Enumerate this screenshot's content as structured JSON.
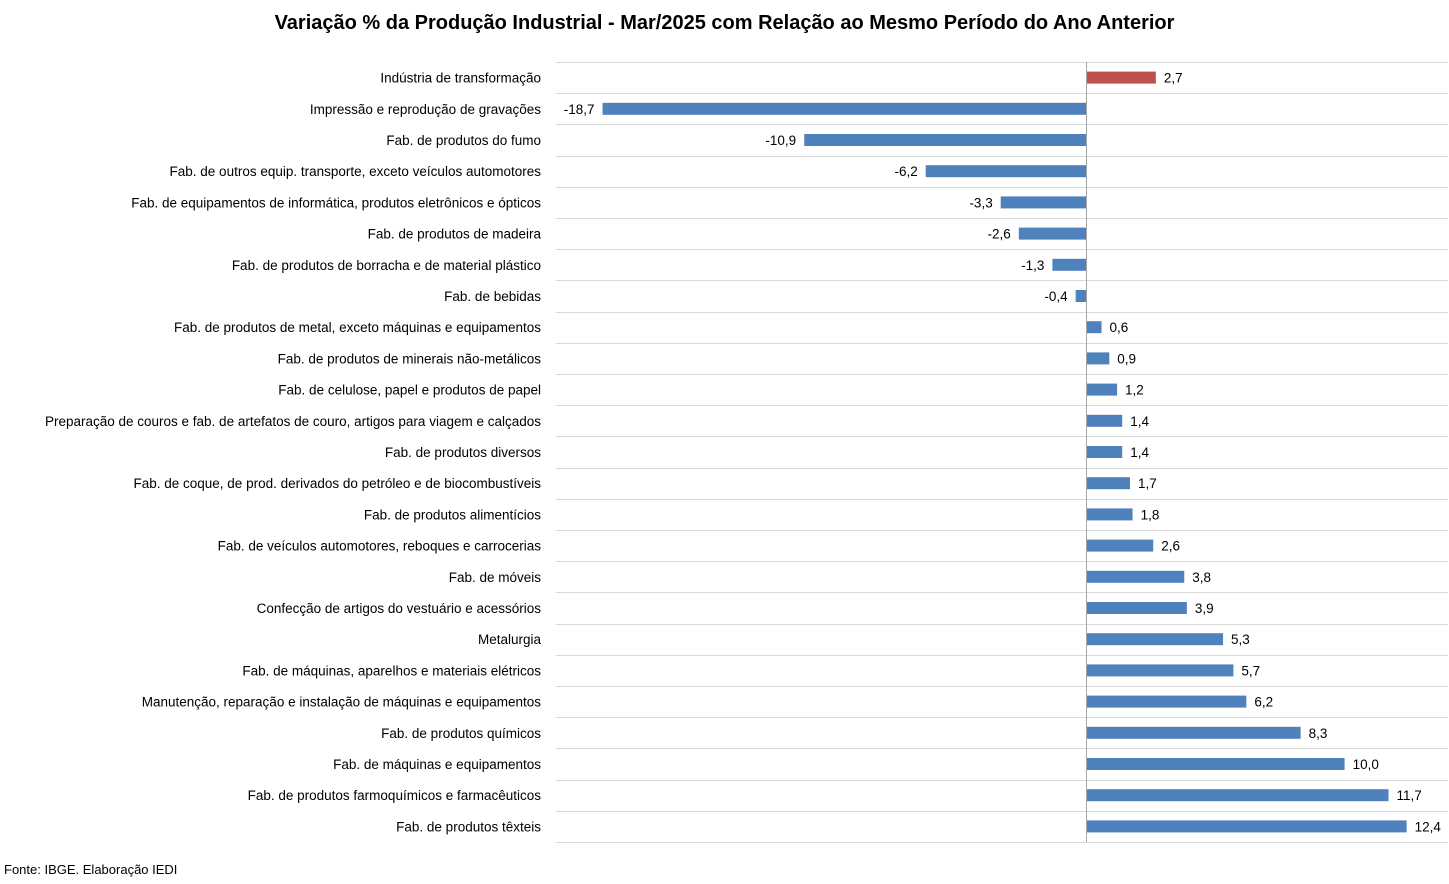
{
  "chart_data": {
    "type": "bar",
    "orientation": "horizontal",
    "title": "Variação % da Produção Industrial - Mar/2025 com Relação ao Mesmo Período do Ano Anterior",
    "source": "Fonte: IBGE. Elaboração IEDI",
    "categories": [
      "Indústria de transformação",
      "Impressão e reprodução de gravações",
      "Fab. de produtos do fumo",
      "Fab. de outros equip. transporte, exceto veículos automotores",
      "Fab. de equipamentos de informática, produtos eletrônicos e ópticos",
      "Fab. de produtos de madeira",
      "Fab. de produtos de borracha e de material plástico",
      "Fab. de bebidas",
      "Fab. de produtos de metal, exceto máquinas e equipamentos",
      "Fab. de produtos de minerais não-metálicos",
      "Fab. de celulose, papel e produtos de papel",
      "Preparação de couros e fab. de artefatos de couro, artigos para viagem e calçados",
      "Fab. de produtos diversos",
      "Fab. de coque, de prod. derivados do petróleo e de biocombustíveis",
      "Fab. de produtos alimentícios",
      "Fab. de veículos automotores, reboques e carrocerias",
      "Fab. de móveis",
      "Confecção de artigos do vestuário e acessórios",
      "Metalurgia",
      "Fab. de máquinas, aparelhos e materiais elétricos",
      "Manutenção, reparação e instalação de máquinas e equipamentos",
      "Fab. de produtos químicos",
      "Fab. de máquinas e equipamentos",
      "Fab. de produtos farmoquímicos e farmacêuticos",
      "Fab. de produtos têxteis"
    ],
    "values": [
      2.7,
      -18.7,
      -10.9,
      -6.2,
      -3.3,
      -2.6,
      -1.3,
      -0.4,
      0.6,
      0.9,
      1.2,
      1.4,
      1.4,
      1.7,
      1.8,
      2.6,
      3.8,
      3.9,
      5.3,
      5.7,
      6.2,
      8.3,
      10.0,
      11.7,
      12.4
    ],
    "value_labels": [
      "2,7",
      "-18,7",
      "-10,9",
      "-6,2",
      "-3,3",
      "-2,6",
      "-1,3",
      "-0,4",
      "0,6",
      "0,9",
      "1,2",
      "1,4",
      "1,4",
      "1,7",
      "1,8",
      "2,6",
      "3,8",
      "3,9",
      "5,3",
      "5,7",
      "6,2",
      "8,3",
      "10,0",
      "11,7",
      "12,4"
    ],
    "xlim": [
      -20.5,
      14
    ],
    "highlight_index": 0,
    "colors": {
      "bar": "#4f81bd",
      "highlight": "#c0504d",
      "grid": "#d9d9d9",
      "axis": "#a6a6a6"
    },
    "grid": true,
    "legend": "none"
  }
}
